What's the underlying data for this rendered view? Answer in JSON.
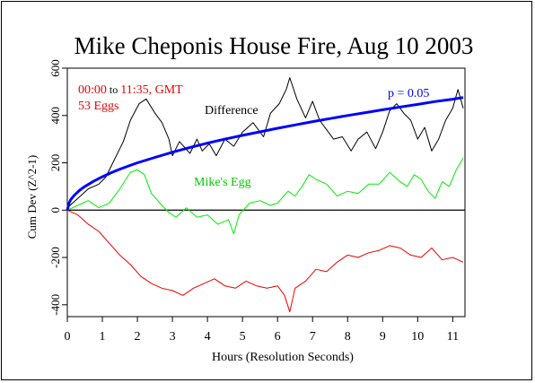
{
  "chart_data": {
    "type": "line",
    "title": "Mike Cheponis House Fire, Aug 10 2003",
    "xlabel": "Hours (Resolution Seconds)",
    "ylabel": "Cum Dev (Z^2-1)",
    "xlim": [
      0,
      11.35
    ],
    "ylim": [
      -450,
      600
    ],
    "x_ticks": [
      0,
      1,
      2,
      3,
      4,
      5,
      6,
      7,
      8,
      9,
      10,
      11
    ],
    "x_tick_labels": [
      "0",
      "1",
      "2",
      "3",
      "4",
      "5",
      "6",
      "7",
      "8",
      "9",
      "10",
      "11"
    ],
    "y_ticks": [
      -400,
      -200,
      0,
      200,
      400,
      600
    ],
    "y_tick_labels": [
      "-400",
      "-200",
      "0",
      "200",
      "400",
      "600"
    ],
    "grid": false,
    "annotations": {
      "time_range_a": "00:00",
      "time_range_b": " to ",
      "time_range_c": "11:35, GMT",
      "eggs": "53 Eggs",
      "difference_label": "Difference",
      "mikes_egg_label": "Mike's Egg",
      "p_label": "p = 0.05"
    },
    "colors": {
      "difference": "#000000",
      "mikes_egg": "#00ee00",
      "others": "#ee0000",
      "p05_envelope": "#0000ff",
      "annotation_red": "#ee0000",
      "annotation_green": "#00cc00",
      "annotation_blue": "#0000ff"
    },
    "series": [
      {
        "name": "Difference",
        "x": [
          0,
          0.3,
          0.6,
          0.9,
          1.1,
          1.3,
          1.6,
          1.8,
          2.05,
          2.25,
          2.5,
          2.7,
          2.9,
          3.0,
          3.2,
          3.5,
          3.7,
          3.85,
          4.05,
          4.25,
          4.5,
          4.75,
          5.0,
          5.3,
          5.6,
          5.8,
          6.05,
          6.25,
          6.35,
          6.55,
          6.8,
          7.0,
          7.2,
          7.4,
          7.6,
          7.85,
          8.1,
          8.3,
          8.55,
          8.8,
          9.0,
          9.2,
          9.4,
          9.6,
          9.8,
          10.0,
          10.2,
          10.4,
          10.6,
          10.8,
          11.0,
          11.15,
          11.3
        ],
        "y": [
          10,
          50,
          90,
          110,
          140,
          200,
          290,
          380,
          450,
          470,
          410,
          370,
          300,
          230,
          290,
          240,
          300,
          250,
          280,
          230,
          300,
          270,
          330,
          370,
          310,
          410,
          450,
          510,
          560,
          470,
          390,
          460,
          380,
          340,
          300,
          310,
          250,
          300,
          330,
          260,
          330,
          420,
          450,
          410,
          380,
          300,
          350,
          250,
          300,
          380,
          430,
          510,
          430
        ]
      },
      {
        "name": "Mike's Egg",
        "x": [
          0,
          0.3,
          0.6,
          0.9,
          1.2,
          1.5,
          1.8,
          2.0,
          2.2,
          2.4,
          2.7,
          2.9,
          3.1,
          3.4,
          3.7,
          4.0,
          4.3,
          4.6,
          4.75,
          4.9,
          5.2,
          5.5,
          5.8,
          6.0,
          6.3,
          6.5,
          6.7,
          6.9,
          7.1,
          7.4,
          7.7,
          8.0,
          8.3,
          8.6,
          8.9,
          9.2,
          9.5,
          9.7,
          9.9,
          10.1,
          10.3,
          10.5,
          10.7,
          10.9,
          11.1,
          11.3
        ],
        "y": [
          0,
          20,
          40,
          10,
          30,
          90,
          160,
          170,
          150,
          70,
          20,
          -10,
          -30,
          10,
          -30,
          -20,
          -60,
          -40,
          -100,
          -20,
          30,
          40,
          20,
          30,
          80,
          60,
          100,
          150,
          130,
          110,
          60,
          80,
          70,
          110,
          110,
          160,
          120,
          100,
          150,
          130,
          80,
          50,
          120,
          100,
          170,
          220
        ]
      },
      {
        "name": "",
        "x": [
          0,
          0.3,
          0.6,
          0.9,
          1.2,
          1.5,
          1.8,
          2.1,
          2.4,
          2.7,
          3.0,
          3.3,
          3.6,
          3.9,
          4.2,
          4.5,
          4.8,
          5.1,
          5.4,
          5.7,
          6.0,
          6.2,
          6.35,
          6.5,
          6.8,
          7.1,
          7.4,
          7.7,
          8.0,
          8.3,
          8.6,
          8.9,
          9.2,
          9.5,
          9.8,
          10.1,
          10.4,
          10.7,
          11.0,
          11.3
        ],
        "y": [
          0,
          -20,
          -60,
          -90,
          -140,
          -190,
          -230,
          -280,
          -310,
          -330,
          -340,
          -360,
          -330,
          -310,
          -290,
          -320,
          -330,
          -300,
          -320,
          -330,
          -320,
          -360,
          -430,
          -330,
          -300,
          -250,
          -260,
          -220,
          -190,
          -200,
          -180,
          -170,
          -150,
          -160,
          -190,
          -200,
          -160,
          -210,
          -200,
          -220
        ]
      },
      {
        "name": "p = 0.05",
        "x": [
          0,
          0.05,
          0.1,
          0.2,
          0.35,
          0.5,
          0.75,
          1.0,
          1.25,
          1.5,
          1.75,
          2.0,
          2.5,
          3.0,
          3.5,
          4.0,
          4.5,
          5.0,
          5.5,
          6.0,
          6.5,
          7.0,
          7.5,
          8.0,
          8.5,
          9.0,
          9.5,
          10.0,
          10.5,
          11.0,
          11.3
        ],
        "y": [
          0,
          30,
          45,
          63,
          84,
          100,
          122,
          141,
          158,
          173,
          187,
          200,
          223,
          245,
          265,
          283,
          300,
          316,
          331,
          346,
          360,
          374,
          387,
          400,
          412,
          424,
          436,
          447,
          459,
          469,
          476
        ]
      }
    ]
  }
}
